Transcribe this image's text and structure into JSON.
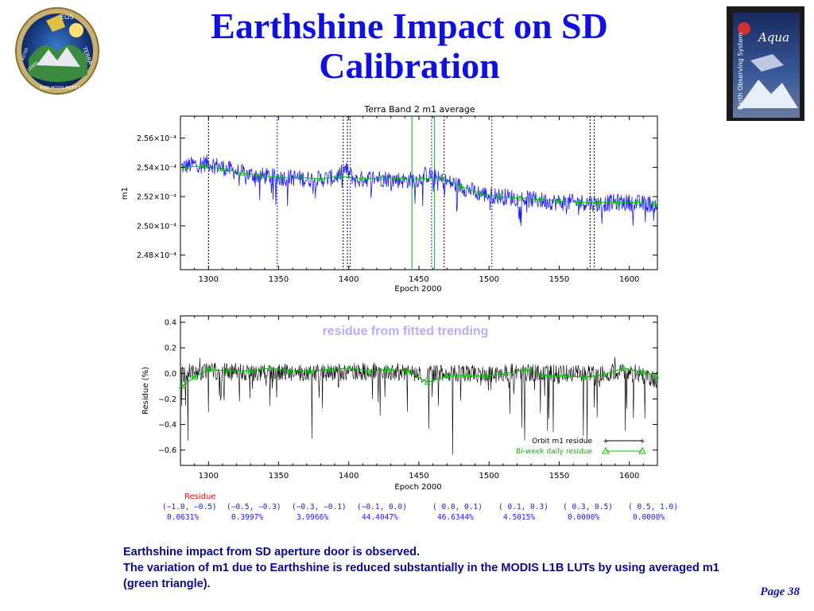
{
  "slide": {
    "title": "Earthshine Impact on SD Calibration",
    "body_lines": [
      "Earthshine impact from SD aperture door is observed.",
      "The variation of m1 due to Earthshine is reduced substantially in the MODIS L1B LUTs by using averaged m1 (green triangle)."
    ],
    "page": "Page 38"
  },
  "logos": {
    "left": {
      "icon": "eos-terra-mission-patch-icon",
      "text": [
        "EOS",
        "TERRA",
        "MISR",
        "MODIS",
        "MOPITT",
        "ASTER",
        "CERES"
      ]
    },
    "right": {
      "icon": "aqua-earth-observing-system-poster-icon",
      "text": [
        "Aqua",
        "Earth Observing System"
      ]
    }
  },
  "colors": {
    "title": "#1010e0",
    "body": "#0a0a90",
    "blue_series": "#1a1aff",
    "green_series": "#00c000",
    "residue_label": "#ff0000",
    "table_text": "#1a1aff",
    "annotation": "#b0b0ff"
  },
  "chart_data": [
    {
      "type": "line",
      "title": "Terra Band 2 m1 average",
      "xlabel": "Epoch 2000",
      "ylabel": "m1",
      "xlim": [
        1280,
        1620
      ],
      "ylim": [
        0.000247,
        0.0002575
      ],
      "xticks": [
        "1300",
        "1350",
        "1400",
        "1450",
        "1500",
        "1550",
        "1600"
      ],
      "yticks": [
        {
          "value": 0.000248,
          "label": "2.48×10⁻⁴"
        },
        {
          "value": 0.00025,
          "label": "2.50×10⁻⁴"
        },
        {
          "value": 0.000252,
          "label": "2.52×10⁻⁴"
        },
        {
          "value": 0.000254,
          "label": "2.54×10⁻⁴"
        },
        {
          "value": 0.000256,
          "label": "2.56×10⁻⁴"
        }
      ],
      "vlines_black": [
        1300,
        1396,
        1399,
        1468,
        1572,
        1575
      ],
      "vlines_blue": [
        1349,
        1401,
        1459,
        1502
      ],
      "vlines_green": [
        1445,
        1461
      ],
      "series": [
        {
          "style": "blue noisy",
          "x": [
            1280,
            1290,
            1300,
            1310,
            1320,
            1330,
            1340,
            1350,
            1360,
            1370,
            1380,
            1390,
            1395,
            1397,
            1400,
            1405,
            1410,
            1420,
            1430,
            1440,
            1450,
            1455,
            1460,
            1465,
            1470,
            1480,
            1490,
            1500,
            1510,
            1520,
            1530,
            1540,
            1550,
            1560,
            1570,
            1580,
            1590,
            1600,
            1610,
            1620
          ],
          "y": [
            0.000254,
            0.0002542,
            0.0002543,
            0.000254,
            0.0002537,
            0.0002535,
            0.0002534,
            0.0002533,
            0.0002533,
            0.0002532,
            0.0002532,
            0.0002533,
            0.0002536,
            0.0002539,
            0.0002536,
            0.0002531,
            0.0002532,
            0.0002533,
            0.0002532,
            0.0002531,
            0.0002532,
            0.0002535,
            0.0002534,
            0.0002531,
            0.000253,
            0.0002527,
            0.0002523,
            0.0002521,
            0.000252,
            0.0002519,
            0.0002518,
            0.0002517,
            0.0002516,
            0.0002516,
            0.0002516,
            0.0002515,
            0.0002516,
            0.0002516,
            0.0002515,
            0.0002515
          ]
        },
        {
          "style": "green triangles",
          "x": [
            1283,
            1297,
            1310,
            1324,
            1338,
            1352,
            1366,
            1380,
            1394,
            1410,
            1424,
            1438,
            1452,
            1466,
            1480,
            1494,
            1508,
            1522,
            1536,
            1550,
            1564,
            1578,
            1592,
            1606,
            1618
          ],
          "y": [
            0.000254,
            0.0002541,
            0.0002539,
            0.0002536,
            0.0002534,
            0.0002533,
            0.0002533,
            0.0002532,
            0.0002534,
            0.0002532,
            0.0002533,
            0.0002532,
            0.0002532,
            0.0002533,
            0.0002527,
            0.0002522,
            0.000252,
            0.0002519,
            0.0002518,
            0.0002517,
            0.0002516,
            0.0002516,
            0.0002516,
            0.0002516,
            0.0002515
          ]
        }
      ]
    },
    {
      "type": "line",
      "title": "",
      "annotation": "residue from fitted trending",
      "xlabel": "Epoch 2000",
      "ylabel": "Residue (%)",
      "xlim": [
        1280,
        1620
      ],
      "ylim": [
        -0.72,
        0.45
      ],
      "xticks": [
        "1300",
        "1350",
        "1400",
        "1450",
        "1500",
        "1550",
        "1600"
      ],
      "yticks": [
        {
          "value": -0.6,
          "label": "−0.6"
        },
        {
          "value": -0.4,
          "label": "−0.4"
        },
        {
          "value": -0.2,
          "label": "−0.2"
        },
        {
          "value": 0.0,
          "label": "0.0"
        },
        {
          "value": 0.2,
          "label": "0.2"
        },
        {
          "value": 0.4,
          "label": "0.4"
        }
      ],
      "legend": [
        {
          "label": "Orbit m1 residue",
          "color": "#000000",
          "marker": "+"
        },
        {
          "label": "Bi-week daily residue",
          "color": "#00c000",
          "marker": "triangle"
        }
      ],
      "legend_position": "bottom-right",
      "series": [
        {
          "name": "Orbit m1 residue",
          "x": [
            1280,
            1300,
            1320,
            1340,
            1360,
            1380,
            1400,
            1420,
            1440,
            1450,
            1452,
            1460,
            1480,
            1500,
            1520,
            1540,
            1560,
            1580,
            1600,
            1620
          ],
          "y": [
            0.0,
            0.02,
            0.01,
            0.0,
            0.01,
            0.0,
            0.01,
            0.02,
            0.01,
            0.0,
            -0.02,
            0.0,
            0.0,
            -0.01,
            0.01,
            0.0,
            0.0,
            0.0,
            0.02,
            -0.05
          ]
        },
        {
          "name": "Bi-week daily residue",
          "x": [
            1281,
            1290,
            1300,
            1314,
            1330,
            1344,
            1358,
            1372,
            1386,
            1400,
            1414,
            1428,
            1442,
            1456,
            1470,
            1484,
            1498,
            1512,
            1526,
            1540,
            1554,
            1568,
            1582,
            1596,
            1610,
            1619
          ],
          "y": [
            -0.1,
            -0.03,
            0.03,
            0.02,
            0.02,
            0.04,
            0.02,
            0.02,
            0.03,
            0.04,
            0.02,
            0.03,
            0.02,
            -0.07,
            -0.02,
            -0.02,
            -0.02,
            0.0,
            0.03,
            -0.02,
            -0.02,
            -0.03,
            -0.01,
            0.04,
            0.01,
            -0.02
          ]
        }
      ]
    }
  ],
  "residue_table": {
    "label": "Residue",
    "ranges": [
      "(−1.0,  −0.5)",
      "(−0.5,  −0.3)",
      "(−0.3,  −0.1)",
      "(−0.1,   0.0)",
      "( 0.0,   0.1)",
      "( 0.1,   0.3)",
      "( 0.3,   0.5)",
      "( 0.5,   1.0)"
    ],
    "percents": [
      "0.0631%",
      "0.3997%",
      "3.9966%",
      "44.4047%",
      "46.6344%",
      "4.5015%",
      "0.0000%",
      "0.0000%"
    ]
  }
}
